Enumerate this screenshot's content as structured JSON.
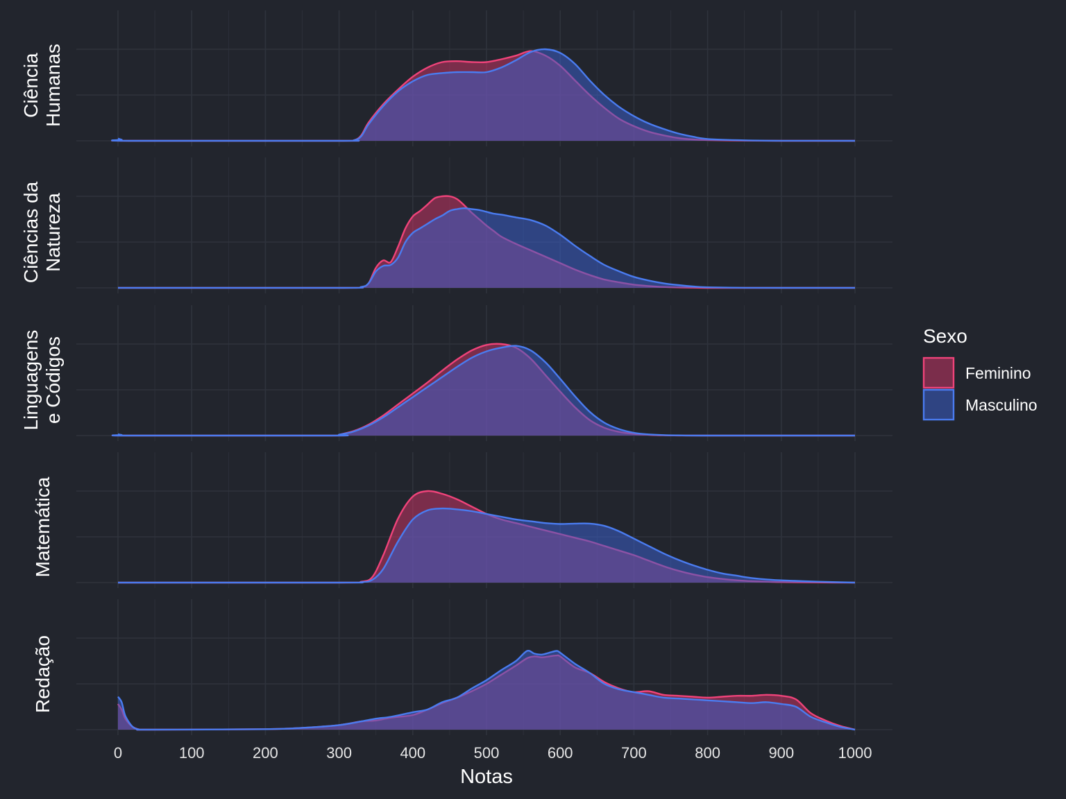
{
  "chart_data": {
    "type": "area",
    "chart_kind": "faceted density (ridgeline)",
    "xlabel": "Notas",
    "xlim": [
      0,
      1000
    ],
    "x_ticks": [
      "0",
      "100",
      "200",
      "300",
      "400",
      "500",
      "600",
      "700",
      "800",
      "900",
      "1000"
    ],
    "grid": true,
    "legend": {
      "title": "Sexo",
      "position": "right",
      "entries": [
        {
          "name": "Feminino",
          "color": "#f0437a"
        },
        {
          "name": "Masculino",
          "color": "#4a7cf0"
        }
      ]
    },
    "colors": {
      "background": "#22252d",
      "grid": "#2f333c",
      "fill_overlap": "#5e4a82"
    },
    "panels": [
      {
        "label_lines": [
          "Ciência",
          "Humanas"
        ],
        "series": [
          {
            "name": "Feminino",
            "x": [
              0,
              5,
              15,
              300,
              320,
              330,
              340,
              360,
              380,
              400,
              420,
              440,
              460,
              480,
              500,
              520,
              540,
              560,
              580,
              600,
              620,
              640,
              660,
              680,
              700,
              720,
              740,
              760,
              780,
              800,
              850,
              900,
              1000
            ],
            "y": [
              0.015,
              0.008,
              0,
              0,
              0.005,
              0.06,
              0.2,
              0.4,
              0.56,
              0.7,
              0.8,
              0.86,
              0.87,
              0.86,
              0.86,
              0.89,
              0.93,
              0.98,
              0.93,
              0.82,
              0.66,
              0.5,
              0.36,
              0.24,
              0.16,
              0.1,
              0.06,
              0.03,
              0.015,
              0.008,
              0.002,
              0,
              0
            ]
          },
          {
            "name": "Masculino",
            "x": [
              0,
              5,
              15,
              300,
              320,
              330,
              340,
              360,
              380,
              400,
              420,
              440,
              460,
              480,
              500,
              520,
              540,
              560,
              580,
              600,
              620,
              640,
              660,
              680,
              700,
              720,
              740,
              760,
              780,
              800,
              850,
              900,
              1000
            ],
            "y": [
              0.025,
              0.012,
              0,
              0,
              0.005,
              0.05,
              0.18,
              0.38,
              0.54,
              0.65,
              0.72,
              0.74,
              0.75,
              0.75,
              0.75,
              0.8,
              0.88,
              0.97,
              1.0,
              0.96,
              0.84,
              0.66,
              0.5,
              0.37,
              0.27,
              0.19,
              0.13,
              0.08,
              0.045,
              0.02,
              0.005,
              0.001,
              0
            ]
          }
        ]
      },
      {
        "label_lines": [
          "Ciências da",
          "Natureza"
        ],
        "series": [
          {
            "name": "Feminino",
            "x": [
              0,
              300,
              330,
              340,
              350,
              360,
              370,
              380,
              390,
              400,
              410,
              420,
              430,
              440,
              450,
              460,
              470,
              480,
              490,
              500,
              510,
              520,
              540,
              560,
              580,
              600,
              620,
              640,
              660,
              680,
              700,
              720,
              740,
              760,
              780,
              800,
              850,
              900,
              1000
            ],
            "y": [
              0,
              0,
              0.01,
              0.05,
              0.22,
              0.3,
              0.28,
              0.45,
              0.65,
              0.78,
              0.84,
              0.91,
              0.98,
              1.0,
              1.0,
              0.97,
              0.9,
              0.82,
              0.75,
              0.68,
              0.62,
              0.56,
              0.48,
              0.41,
              0.34,
              0.27,
              0.2,
              0.14,
              0.09,
              0.06,
              0.035,
              0.02,
              0.01,
              0.005,
              0.002,
              0,
              0,
              0,
              0
            ]
          },
          {
            "name": "Masculino",
            "x": [
              0,
              300,
              330,
              340,
              350,
              360,
              370,
              380,
              390,
              400,
              410,
              420,
              430,
              440,
              450,
              460,
              470,
              480,
              490,
              500,
              510,
              520,
              540,
              560,
              580,
              600,
              620,
              640,
              660,
              680,
              700,
              720,
              740,
              760,
              780,
              800,
              850,
              900,
              1000
            ],
            "y": [
              0,
              0,
              0.01,
              0.05,
              0.18,
              0.24,
              0.25,
              0.33,
              0.5,
              0.6,
              0.65,
              0.7,
              0.75,
              0.79,
              0.84,
              0.86,
              0.87,
              0.86,
              0.85,
              0.83,
              0.81,
              0.8,
              0.77,
              0.74,
              0.68,
              0.58,
              0.46,
              0.35,
              0.25,
              0.18,
              0.12,
              0.08,
              0.05,
              0.03,
              0.015,
              0.006,
              0.001,
              0,
              0
            ]
          }
        ]
      },
      {
        "label_lines": [
          "Linguagens",
          "e Códigos"
        ],
        "series": [
          {
            "name": "Feminino",
            "x": [
              0,
              5,
              15,
              290,
              300,
              320,
              340,
              360,
              380,
              400,
              420,
              440,
              460,
              480,
              500,
              520,
              540,
              560,
              580,
              600,
              620,
              640,
              660,
              680,
              700,
              720,
              740,
              760,
              800,
              1000
            ],
            "y": [
              0.01,
              0.005,
              0,
              0,
              0.01,
              0.05,
              0.12,
              0.22,
              0.34,
              0.46,
              0.58,
              0.71,
              0.83,
              0.93,
              0.99,
              1.0,
              0.96,
              0.84,
              0.66,
              0.48,
              0.31,
              0.17,
              0.085,
              0.04,
              0.018,
              0.008,
              0.003,
              0.001,
              0,
              0
            ]
          },
          {
            "name": "Masculino",
            "x": [
              0,
              5,
              15,
              290,
              300,
              320,
              340,
              360,
              380,
              400,
              420,
              440,
              460,
              480,
              500,
              520,
              540,
              560,
              580,
              600,
              620,
              640,
              660,
              680,
              700,
              720,
              740,
              760,
              800,
              1000
            ],
            "y": [
              0.015,
              0.007,
              0,
              0,
              0.01,
              0.045,
              0.11,
              0.2,
              0.31,
              0.42,
              0.53,
              0.64,
              0.75,
              0.85,
              0.92,
              0.96,
              0.98,
              0.93,
              0.8,
              0.62,
              0.43,
              0.26,
              0.14,
              0.07,
              0.03,
              0.013,
              0.005,
              0.002,
              0,
              0
            ]
          }
        ]
      },
      {
        "label_lines": [
          "Matemática"
        ],
        "series": [
          {
            "name": "Feminino",
            "x": [
              0,
              300,
              330,
              345,
              360,
              380,
              400,
              420,
              440,
              460,
              480,
              500,
              520,
              540,
              560,
              580,
              600,
              620,
              640,
              660,
              680,
              700,
              720,
              740,
              760,
              780,
              800,
              820,
              840,
              860,
              880,
              900,
              950,
              1000
            ],
            "y": [
              0,
              0,
              0.01,
              0.06,
              0.3,
              0.7,
              0.94,
              1.0,
              0.97,
              0.91,
              0.83,
              0.75,
              0.69,
              0.65,
              0.61,
              0.57,
              0.53,
              0.49,
              0.45,
              0.4,
              0.35,
              0.3,
              0.24,
              0.18,
              0.13,
              0.09,
              0.06,
              0.04,
              0.025,
              0.015,
              0.01,
              0.006,
              0.002,
              0
            ]
          },
          {
            "name": "Masculino",
            "x": [
              0,
              300,
              330,
              345,
              360,
              380,
              400,
              420,
              440,
              460,
              480,
              500,
              520,
              540,
              560,
              580,
              600,
              620,
              640,
              660,
              680,
              700,
              720,
              740,
              760,
              780,
              800,
              820,
              840,
              860,
              880,
              900,
              950,
              1000
            ],
            "y": [
              0,
              0,
              0.005,
              0.03,
              0.15,
              0.45,
              0.69,
              0.79,
              0.81,
              0.8,
              0.78,
              0.75,
              0.72,
              0.69,
              0.67,
              0.65,
              0.64,
              0.645,
              0.645,
              0.62,
              0.56,
              0.48,
              0.4,
              0.32,
              0.25,
              0.19,
              0.14,
              0.1,
              0.075,
              0.05,
              0.035,
              0.025,
              0.01,
              0
            ]
          }
        ]
      },
      {
        "label_lines": [
          "Redação"
        ],
        "series": [
          {
            "name": "Feminino",
            "x": [
              0,
              5,
              10,
              20,
              30,
              40,
              200,
              250,
              300,
              330,
              350,
              370,
              400,
              420,
              440,
              460,
              480,
              500,
              520,
              540,
              555,
              565,
              575,
              585,
              595,
              600,
              620,
              640,
              660,
              680,
              700,
              720,
              740,
              760,
              780,
              800,
              820,
              840,
              860,
              880,
              900,
              920,
              940,
              960,
              980,
              1000
            ],
            "y": [
              0.28,
              0.22,
              0.12,
              0.03,
              0,
              0,
              0.005,
              0.02,
              0.05,
              0.09,
              0.1,
              0.13,
              0.16,
              0.22,
              0.29,
              0.35,
              0.42,
              0.5,
              0.6,
              0.7,
              0.78,
              0.8,
              0.79,
              0.8,
              0.81,
              0.8,
              0.68,
              0.62,
              0.52,
              0.45,
              0.41,
              0.42,
              0.38,
              0.37,
              0.36,
              0.35,
              0.36,
              0.37,
              0.37,
              0.38,
              0.37,
              0.33,
              0.18,
              0.1,
              0.04,
              0
            ]
          },
          {
            "name": "Masculino",
            "x": [
              0,
              5,
              10,
              20,
              30,
              40,
              200,
              250,
              300,
              330,
              350,
              370,
              400,
              420,
              440,
              460,
              480,
              500,
              520,
              540,
              555,
              565,
              575,
              585,
              595,
              600,
              620,
              640,
              660,
              680,
              700,
              720,
              740,
              760,
              780,
              800,
              820,
              840,
              860,
              880,
              900,
              920,
              940,
              960,
              980,
              1000
            ],
            "y": [
              0.36,
              0.3,
              0.15,
              0.03,
              0,
              0,
              0.005,
              0.02,
              0.05,
              0.09,
              0.12,
              0.14,
              0.19,
              0.22,
              0.3,
              0.35,
              0.45,
              0.54,
              0.65,
              0.75,
              0.86,
              0.83,
              0.82,
              0.84,
              0.86,
              0.84,
              0.72,
              0.62,
              0.5,
              0.44,
              0.41,
              0.38,
              0.35,
              0.34,
              0.33,
              0.32,
              0.31,
              0.3,
              0.29,
              0.3,
              0.28,
              0.25,
              0.14,
              0.08,
              0.03,
              0
            ]
          }
        ]
      }
    ]
  }
}
